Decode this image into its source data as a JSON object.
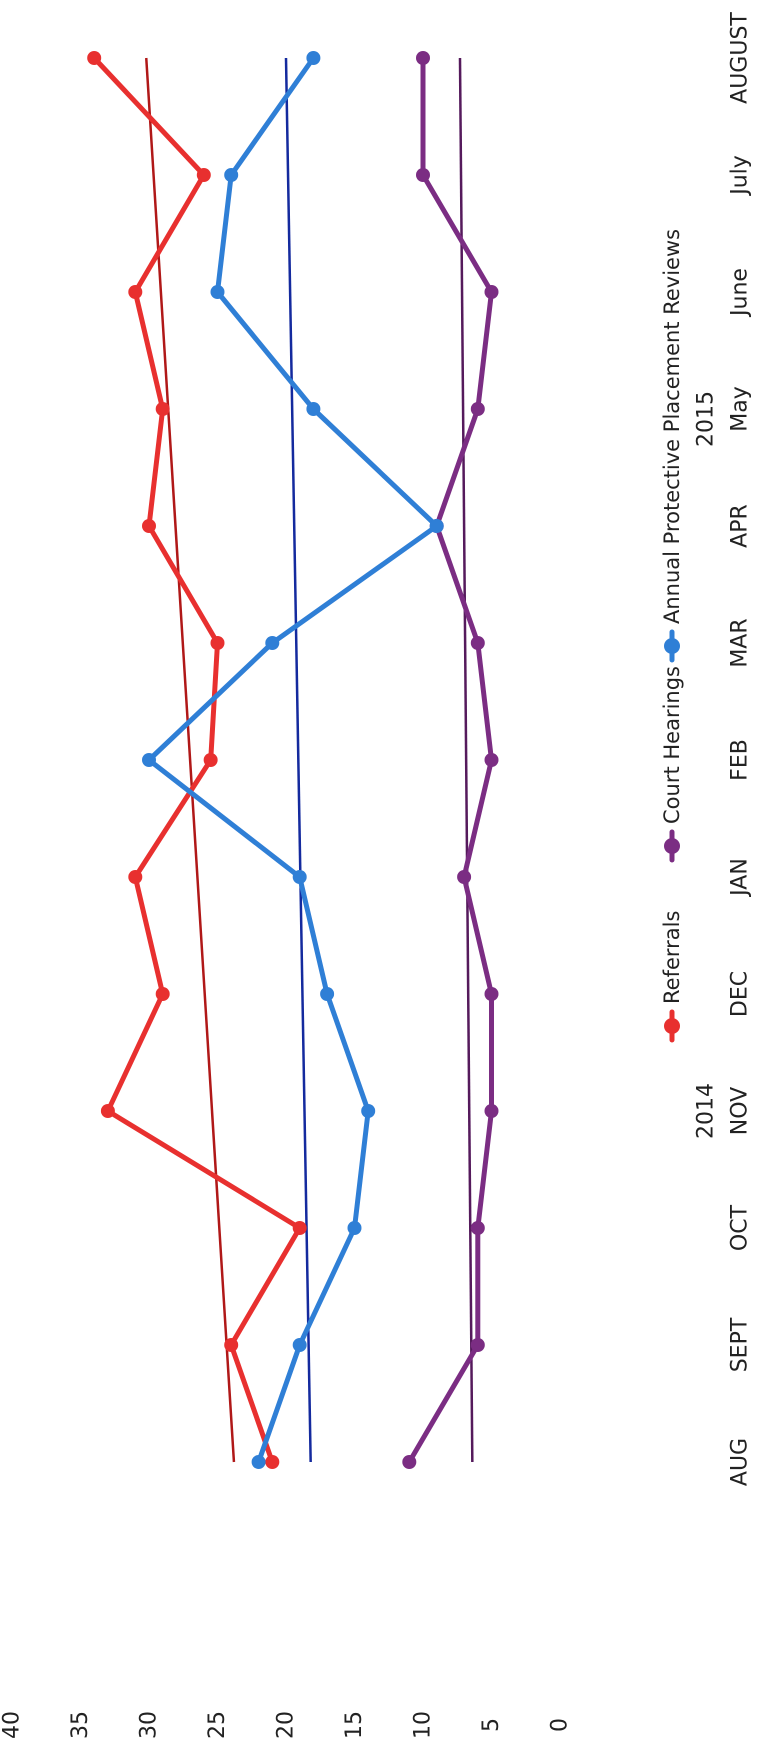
{
  "chart_data": {
    "type": "line",
    "title": "",
    "xlabel": "",
    "ylabel": "",
    "ylim": [
      0,
      40
    ],
    "y_ticks": [
      "0",
      "5",
      "10",
      "15",
      "20",
      "25",
      "30",
      "35",
      "40"
    ],
    "categories": [
      "AUG",
      "SEPT",
      "OCT",
      "NOV",
      "DEC",
      "JAN",
      "FEB",
      "MAR",
      "APR",
      "May",
      "June",
      "July",
      "AUGUST"
    ],
    "year_labels": [
      {
        "text": "2014",
        "category_index": 3
      },
      {
        "text": "2015",
        "category_index": 9
      }
    ],
    "series": [
      {
        "name": "Referrals",
        "color": "#e8302f",
        "values": [
          21,
          24,
          19,
          33,
          29,
          31,
          25.5,
          25,
          30,
          29,
          31,
          26,
          34
        ],
        "trend": [
          23.8,
          30.2
        ]
      },
      {
        "name": "Court Hearings",
        "color": "#7b2d83",
        "values": [
          11,
          6,
          6,
          5,
          5,
          7,
          5,
          6,
          9,
          6,
          5,
          10,
          10
        ],
        "trend": [
          6.4,
          7.3
        ]
      },
      {
        "name": "Annual Protective Placement Reviews",
        "color": "#2f7fd6",
        "values": [
          22,
          19,
          15,
          14,
          17,
          19,
          30,
          21,
          9,
          18,
          25,
          24,
          18
        ],
        "trend": [
          18.2,
          20
        ]
      }
    ],
    "trend_colors": [
      "#b01818",
      "#551a5c",
      "#142a9e"
    ],
    "legend_position": "bottom",
    "grid": false
  }
}
